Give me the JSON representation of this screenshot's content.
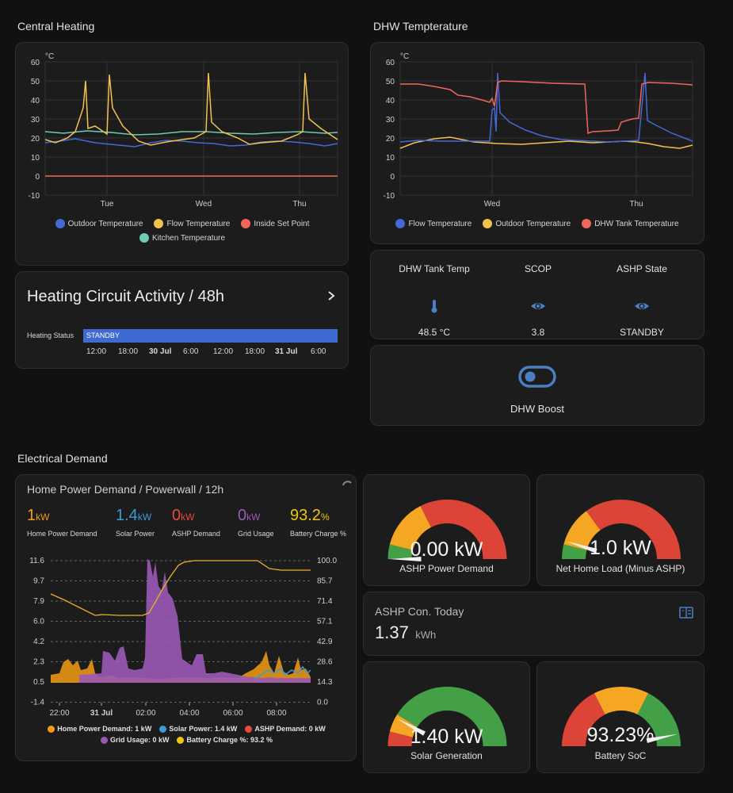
{
  "sections": {
    "central_heating": "Central Heating",
    "dhw": "DHW Tempterature",
    "electrical": "Electrical Demand"
  },
  "ch_chart": {
    "unit": "°C",
    "y_ticks": [
      "60",
      "50",
      "40",
      "30",
      "20",
      "10",
      "0",
      "-10"
    ],
    "x_ticks": [
      "Tue",
      "Wed",
      "Thu"
    ],
    "legend": [
      {
        "label": "Outdoor Temperature",
        "color": "#4469d6"
      },
      {
        "label": "Flow Temperature",
        "color": "#f2c14e"
      },
      {
        "label": "Inside Set Point",
        "color": "#f0665a"
      },
      {
        "label": "Kitchen Temperature",
        "color": "#6ccbb0"
      }
    ]
  },
  "dhw_chart": {
    "unit": "°C",
    "y_ticks": [
      "60",
      "50",
      "40",
      "30",
      "20",
      "10",
      "0",
      "-10"
    ],
    "x_ticks": [
      "Wed",
      "Thu"
    ],
    "legend": [
      {
        "label": "Flow Temperature",
        "color": "#4469d6"
      },
      {
        "label": "Outdoor Temperature",
        "color": "#f2c14e"
      },
      {
        "label": "DHW Tank Temperature",
        "color": "#f0665a"
      }
    ]
  },
  "activity": {
    "title": "Heating Circuit Activity / 48h",
    "row_label": "Heating Status",
    "bar_label": "STANDBY",
    "times": [
      "12:00",
      "18:00",
      "30 Jul",
      "6:00",
      "12:00",
      "18:00",
      "31 Jul",
      "6:00"
    ]
  },
  "dhw_stats": [
    {
      "title": "DHW Tank Temp",
      "value": "48.5 °C",
      "icon": "thermometer-icon"
    },
    {
      "title": "SCOP",
      "value": "3.8",
      "icon": "eye-icon"
    },
    {
      "title": "ASHP State",
      "value": "STANDBY",
      "icon": "eye-icon"
    }
  ],
  "dhw_boost": {
    "label": "DHW Boost"
  },
  "powerwall": {
    "title": "Home Power Demand / Powerwall / 12h",
    "stats": [
      {
        "num": "1",
        "unit": "kW",
        "label": "Home Power Demand",
        "color": "#f39c12"
      },
      {
        "num": "1.4",
        "unit": "kW",
        "label": "Solar Power",
        "color": "#3d9bd6"
      },
      {
        "num": "0",
        "unit": "kW",
        "label": "ASHP Demand",
        "color": "#e74c3c"
      },
      {
        "num": "0",
        "unit": "kW",
        "label": "Grid Usage",
        "color": "#9b59b6"
      },
      {
        "num": "93.2",
        "unit": "%",
        "label": "Battery Charge %",
        "color": "#f1c40f"
      }
    ],
    "y_left": [
      "11.6",
      "9.7",
      "7.9",
      "6.0",
      "4.2",
      "2.3",
      "0.5",
      "-1.4"
    ],
    "y_right": [
      "100.0",
      "85.7",
      "71.4",
      "57.1",
      "42.9",
      "28.6",
      "14.3",
      "0.0"
    ],
    "x_ticks": [
      "22:00",
      "31 Jul",
      "02:00",
      "04:00",
      "06:00",
      "08:00"
    ],
    "legend": [
      {
        "label": "Home Power Demand: 1 kW",
        "color": "#f39c12"
      },
      {
        "label": "Solar Power: 1.4 kW",
        "color": "#3d9bd6"
      },
      {
        "label": "ASHP Demand: 0 kW",
        "color": "#e74c3c"
      },
      {
        "label": "Grid Usage: 0 kW",
        "color": "#9b59b6"
      },
      {
        "label": "Battery Charge %: 93.2 %",
        "color": "#f1c40f"
      }
    ]
  },
  "gauges": [
    {
      "id": "ashp",
      "value": "0.00 kW",
      "label": "ASHP Power Demand",
      "fraction": 0.0
    },
    {
      "id": "net",
      "value": "1.0 kW",
      "label": "Net Home Load (Minus ASHP)",
      "fraction": 0.1
    },
    {
      "id": "solar",
      "value": "1.40 kW",
      "label": "Solar Generation",
      "fraction": 0.16
    },
    {
      "id": "soc",
      "value": "93.23%",
      "label": "Battery SoC",
      "fraction": 0.9323
    }
  ],
  "ashp_con": {
    "title": "ASHP Con. Today",
    "value": "1.37",
    "unit": "kWh"
  },
  "colors": {
    "orange": "#f5a623",
    "red": "#db4437",
    "green": "#43a047",
    "blue": "#4469d6",
    "gray": "#555555"
  }
}
